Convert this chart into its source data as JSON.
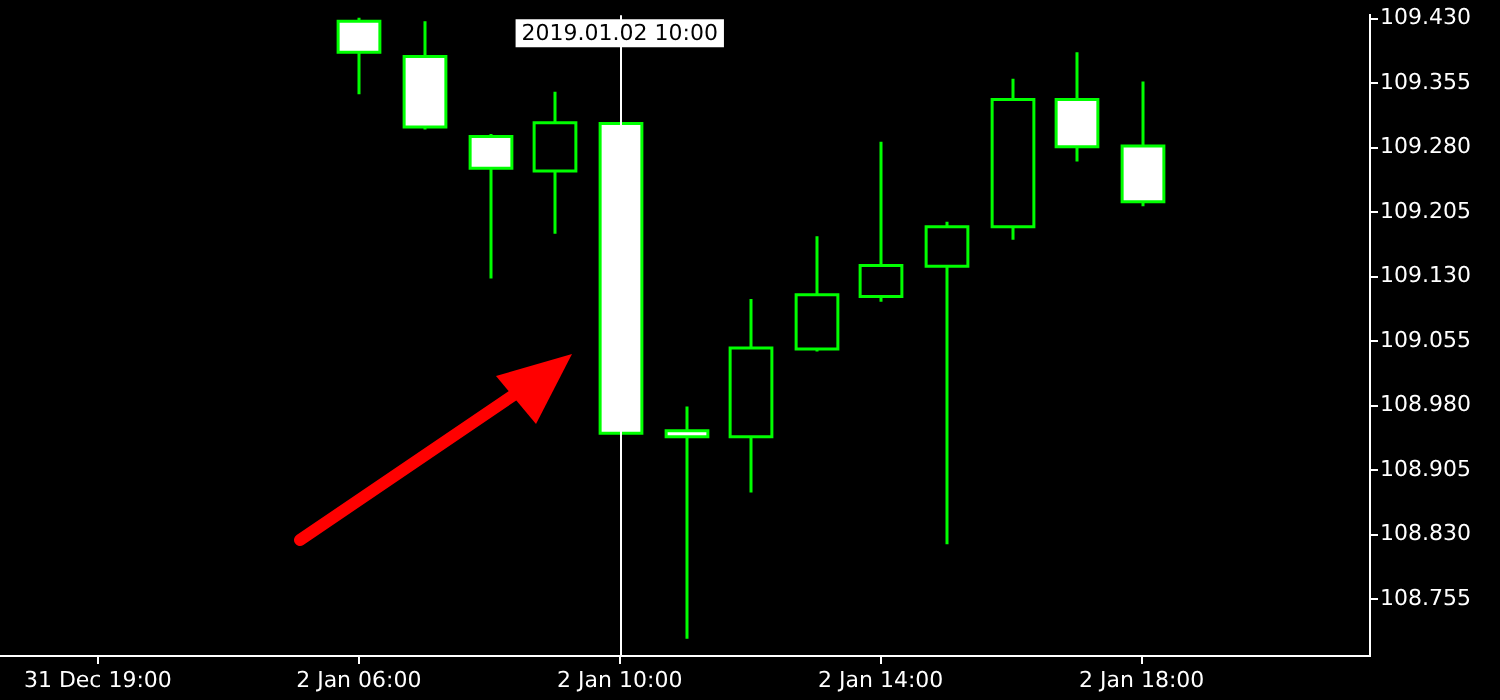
{
  "chart_data": {
    "type": "candlestick",
    "color": "#00ff00",
    "colors": [
      null,
      null,
      null,
      null,
      null,
      "#ffffff",
      "#ffffff",
      "#ffffff",
      "#000000",
      "#ffffff",
      "#ffffff",
      "#000000",
      "#000000",
      "#000000",
      "#000000",
      "#000000",
      "#ffffff",
      "#ffffff",
      null,
      null,
      null
    ],
    "categories": [
      null,
      "31 Dec 19:00",
      null,
      null,
      null,
      "2 Jan 06:00",
      null,
      null,
      null,
      "2 Jan 10:00",
      null,
      null,
      null,
      "2 Jan 14:00",
      null,
      null,
      null,
      "2 Jan 18:00",
      null,
      null,
      null
    ],
    "ohlc": [
      [
        null,
        null,
        null,
        null
      ],
      [
        null,
        null,
        null,
        null
      ],
      [
        null,
        null,
        null,
        null
      ],
      [
        null,
        null,
        null,
        null
      ],
      [
        null,
        null,
        null,
        null
      ],
      [
        109.427,
        109.431,
        109.342,
        109.391
      ],
      [
        109.386,
        109.427,
        109.301,
        109.304
      ],
      [
        109.293,
        109.296,
        109.128,
        109.256
      ],
      [
        109.253,
        109.345,
        109.18,
        109.309
      ],
      [
        109.308,
        109.308,
        108.948,
        108.948
      ],
      [
        108.951,
        108.979,
        108.709,
        108.944
      ],
      [
        108.944,
        109.104,
        108.879,
        109.047
      ],
      [
        109.046,
        109.177,
        109.043,
        109.109
      ],
      [
        109.107,
        109.287,
        109.101,
        109.143
      ],
      [
        109.142,
        109.194,
        108.819,
        109.188
      ],
      [
        109.188,
        109.36,
        109.173,
        109.336
      ],
      [
        109.336,
        109.391,
        109.264,
        109.281
      ],
      [
        109.282,
        109.357,
        109.212,
        109.217
      ],
      [
        null,
        null,
        null,
        null
      ],
      [
        null,
        null,
        null,
        null
      ],
      [
        null,
        null,
        null,
        null
      ]
    ],
    "ylim": [
      108.689,
      109.434
    ],
    "yticks": [
      {
        "value": 108.755,
        "label": "108.755"
      },
      {
        "value": 108.83,
        "label": "108.830"
      },
      {
        "value": 108.905,
        "label": "108.905"
      },
      {
        "value": 108.98,
        "label": "108.980"
      },
      {
        "value": 109.055,
        "label": "109.055"
      },
      {
        "value": 109.13,
        "label": "109.130"
      },
      {
        "value": 109.205,
        "label": "109.205"
      },
      {
        "value": 109.28,
        "label": "109.280"
      },
      {
        "value": 109.355,
        "label": "109.355"
      },
      {
        "value": 109.43,
        "label": "109.430"
      }
    ],
    "ref_lines": [
      {
        "axis": "x",
        "value": "2 Jan 10:00",
        "label": "2019.01.02 10:00",
        "color": "#ffffff"
      }
    ],
    "grid": false,
    "legend": false
  }
}
